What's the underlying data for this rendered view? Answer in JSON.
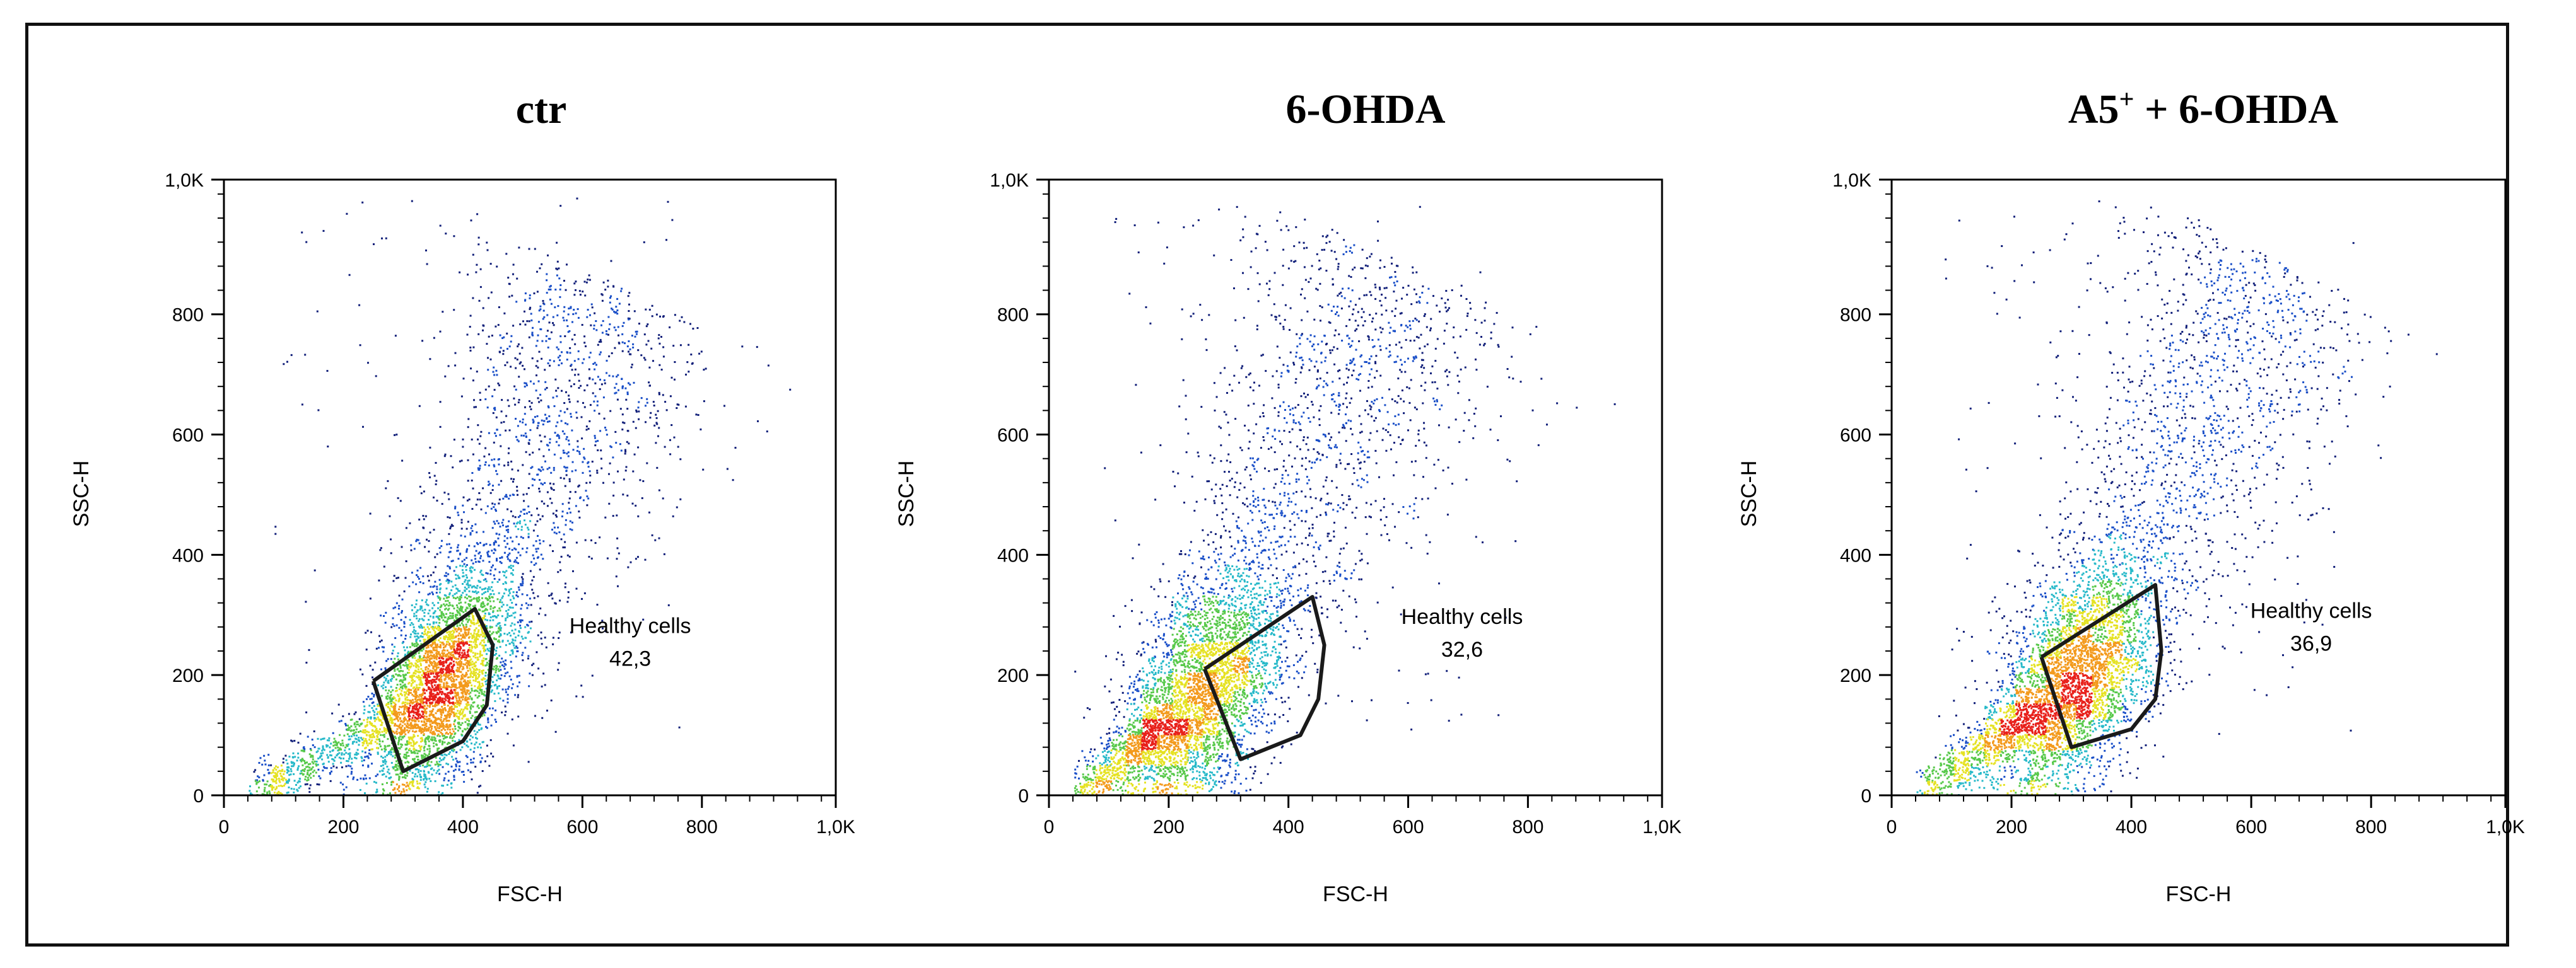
{
  "figure": {
    "panels": [
      {
        "title": "ctr",
        "gate_label": "Healthy cells",
        "gate_value": "42,3"
      },
      {
        "title": "6-OHDA",
        "gate_label": "Healthy cells",
        "gate_value": "32,6"
      },
      {
        "title": "A5",
        "title_sup": "+",
        "title_suffix": " + 6-OHDA",
        "gate_label": "Healthy cells",
        "gate_value": "36,9"
      }
    ]
  },
  "chart_data": [
    {
      "type": "scatter",
      "title": "ctr",
      "xlabel": "FSC-H",
      "ylabel": "SSC-H",
      "xlim": [
        0,
        1024
      ],
      "ylim": [
        0,
        1024
      ],
      "xticks": [
        0,
        200,
        400,
        600,
        800,
        1024
      ],
      "xtick_labels": [
        "0",
        "200",
        "400",
        "600",
        "800",
        "1,0K"
      ],
      "yticks": [
        0,
        200,
        400,
        600,
        800,
        1024
      ],
      "ytick_labels": [
        "0",
        "200",
        "400",
        "600",
        "800",
        "1,0K"
      ],
      "color_scale": "density (blue → cyan → green → yellow → red)",
      "population": {
        "center": [
          360,
          180
        ],
        "spread_along": 190,
        "spread_across": 48,
        "tail_to": [
          640,
          820
        ]
      },
      "gate": {
        "name": "Healthy cells",
        "value": 42.3,
        "polygon": [
          [
            250,
            190
          ],
          [
            420,
            310
          ],
          [
            450,
            250
          ],
          [
            440,
            150
          ],
          [
            400,
            90
          ],
          [
            300,
            40
          ],
          [
            250,
            190
          ]
        ]
      }
    },
    {
      "type": "scatter",
      "title": "6-OHDA",
      "xlabel": "FSC-H",
      "ylabel": "SSC-H",
      "xlim": [
        0,
        1024
      ],
      "ylim": [
        0,
        1024
      ],
      "xticks": [
        0,
        200,
        400,
        600,
        800,
        1024
      ],
      "xtick_labels": [
        "0",
        "200",
        "400",
        "600",
        "800",
        "1,0K"
      ],
      "yticks": [
        0,
        200,
        400,
        600,
        800,
        1024
      ],
      "ytick_labels": [
        "0",
        "200",
        "400",
        "600",
        "800",
        "1,0K"
      ],
      "color_scale": "density (blue → cyan → green → yellow → red)",
      "population": {
        "center": [
          250,
          160
        ],
        "spread_along": 200,
        "spread_across": 55,
        "tail_to": [
          580,
          850
        ]
      },
      "gate": {
        "name": "Healthy cells",
        "value": 32.6,
        "polygon": [
          [
            260,
            210
          ],
          [
            440,
            330
          ],
          [
            460,
            250
          ],
          [
            450,
            160
          ],
          [
            420,
            100
          ],
          [
            320,
            60
          ],
          [
            260,
            210
          ]
        ]
      }
    },
    {
      "type": "scatter",
      "title": "A5+ + 6-OHDA",
      "xlabel": "FSC-H",
      "ylabel": "SSC-H",
      "xlim": [
        0,
        1024
      ],
      "ylim": [
        0,
        1024
      ],
      "xticks": [
        0,
        200,
        400,
        600,
        800,
        1024
      ],
      "xtick_labels": [
        "0",
        "200",
        "400",
        "600",
        "800",
        "1,0K"
      ],
      "yticks": [
        0,
        200,
        400,
        600,
        800,
        1024
      ],
      "ytick_labels": [
        "0",
        "200",
        "400",
        "600",
        "800",
        "1,0K"
      ],
      "color_scale": "density (blue → cyan → green → yellow → red)",
      "population": {
        "center": [
          300,
          185
        ],
        "spread_along": 200,
        "spread_across": 55,
        "tail_to": [
          620,
          860
        ]
      },
      "gate": {
        "name": "Healthy cells",
        "value": 36.9,
        "polygon": [
          [
            250,
            230
          ],
          [
            440,
            350
          ],
          [
            450,
            240
          ],
          [
            440,
            160
          ],
          [
            400,
            110
          ],
          [
            300,
            80
          ],
          [
            250,
            230
          ]
        ]
      }
    }
  ]
}
